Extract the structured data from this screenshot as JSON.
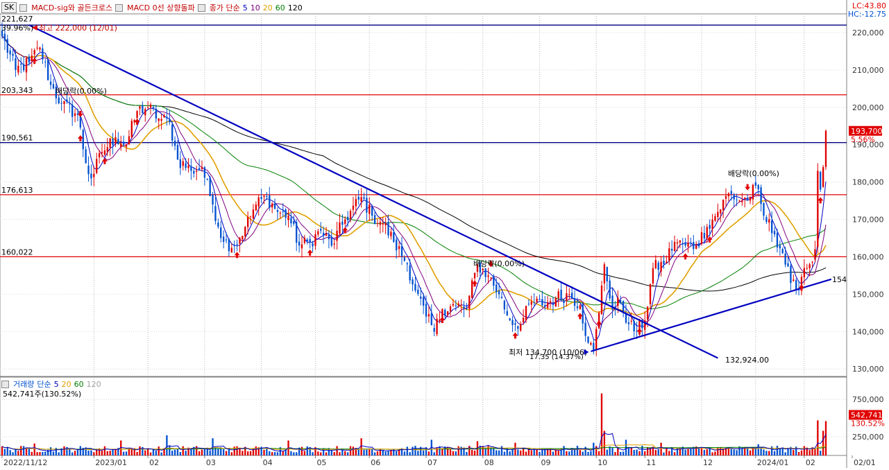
{
  "header": {
    "stock_tag": "SK",
    "indicators": [
      {
        "label": "MACD-sig와 골든크로스",
        "color": "#c00000"
      },
      {
        "label": "MACD 0선 상향돌파",
        "color": "#c00000"
      }
    ],
    "ma_title": "종가 단순",
    "ma_periods": [
      {
        "label": "5",
        "color": "#0000c0"
      },
      {
        "label": "10",
        "color": "#800080"
      },
      {
        "label": "20",
        "color": "#e0a000"
      },
      {
        "label": "60",
        "color": "#008000"
      },
      {
        "label": "120",
        "color": "#000000"
      }
    ],
    "lc": "LC:43.80",
    "hc": "HC:-12.75",
    "top_left_value": "221,627"
  },
  "colors": {
    "up": "#e00000",
    "down": "#0050d0",
    "ma5": "#0000c0",
    "ma10": "#800080",
    "ma20": "#e0a000",
    "ma60": "#008000",
    "ma120": "#000000",
    "trend": "#0000c0",
    "hline": "#e00000",
    "navy": "#000080"
  },
  "chart_data": [
    {
      "type": "candlestick",
      "ylim": [
        128000,
        225000
      ],
      "y_ticks": [
        "220,000",
        "210,000",
        "200,000",
        "190,000",
        "180,000",
        "170,000",
        "160,000",
        "150,000",
        "140,000",
        "130,000"
      ],
      "y_tick_values": [
        220000,
        210000,
        200000,
        190000,
        180000,
        170000,
        160000,
        150000,
        140000,
        130000
      ],
      "x_labels": [
        "2022/11/12",
        "2023/01",
        "02",
        "03",
        "04",
        "05",
        "06",
        "07",
        "08",
        "09",
        "10",
        "11",
        "12",
        "2024/01",
        "02",
        "02/01"
      ],
      "x_label_index": [
        0,
        34,
        54,
        75,
        96,
        116,
        136,
        157,
        178,
        199,
        220,
        238,
        259,
        279,
        297,
        315
      ],
      "num_bars": 300,
      "close_anchors": [
        [
          0,
          219000
        ],
        [
          5,
          210000
        ],
        [
          10,
          212000
        ],
        [
          14,
          216000
        ],
        [
          18,
          206000
        ],
        [
          22,
          201000
        ],
        [
          28,
          198000
        ],
        [
          31,
          185000
        ],
        [
          33,
          181000
        ],
        [
          37,
          188000
        ],
        [
          42,
          192000
        ],
        [
          46,
          190000
        ],
        [
          50,
          199000
        ],
        [
          54,
          200000
        ],
        [
          58,
          197000
        ],
        [
          62,
          196000
        ],
        [
          65,
          186000
        ],
        [
          70,
          183000
        ],
        [
          74,
          184000
        ],
        [
          78,
          174000
        ],
        [
          82,
          164000
        ],
        [
          86,
          163000
        ],
        [
          90,
          168000
        ],
        [
          94,
          174000
        ],
        [
          98,
          176000
        ],
        [
          102,
          172000
        ],
        [
          106,
          171000
        ],
        [
          110,
          163000
        ],
        [
          114,
          164000
        ],
        [
          118,
          167000
        ],
        [
          122,
          163000
        ],
        [
          127,
          170000
        ],
        [
          133,
          176000
        ],
        [
          137,
          171000
        ],
        [
          141,
          169000
        ],
        [
          145,
          164000
        ],
        [
          150,
          158000
        ],
        [
          153,
          151000
        ],
        [
          157,
          144000
        ],
        [
          160,
          140000
        ],
        [
          163,
          146000
        ],
        [
          168,
          147000
        ],
        [
          172,
          146000
        ],
        [
          176,
          158000
        ],
        [
          180,
          155000
        ],
        [
          184,
          150000
        ],
        [
          188,
          143000
        ],
        [
          192,
          142000
        ],
        [
          196,
          148000
        ],
        [
          200,
          147000
        ],
        [
          205,
          149000
        ],
        [
          210,
          150000
        ],
        [
          214,
          147000
        ],
        [
          217,
          137000
        ],
        [
          219,
          134700
        ],
        [
          221,
          145000
        ],
        [
          223,
          158000
        ],
        [
          226,
          146000
        ],
        [
          229,
          148000
        ],
        [
          232,
          142000
        ],
        [
          235,
          140000
        ],
        [
          238,
          143000
        ],
        [
          241,
          157000
        ],
        [
          245,
          158000
        ],
        [
          249,
          164000
        ],
        [
          253,
          163000
        ],
        [
          257,
          163000
        ],
        [
          261,
          168000
        ],
        [
          265,
          172000
        ],
        [
          269,
          177000
        ],
        [
          273,
          175000
        ],
        [
          277,
          176000
        ],
        [
          279,
          179000
        ],
        [
          282,
          171000
        ],
        [
          286,
          166000
        ],
        [
          289,
          161000
        ],
        [
          292,
          153000
        ],
        [
          294,
          151000
        ],
        [
          297,
          157000
        ],
        [
          299,
          158000
        ],
        [
          301,
          162000
        ],
        [
          302,
          183000
        ],
        [
          303,
          178000
        ],
        [
          304,
          184000
        ],
        [
          305,
          193700
        ]
      ],
      "h_lines": [
        {
          "value": 222000,
          "color": "navy"
        },
        {
          "value": 203343,
          "color": "red",
          "label": "203,343"
        },
        {
          "value": 190561,
          "color": "navy",
          "label": "190,561"
        },
        {
          "value": 176613,
          "color": "red",
          "label": "176,613"
        },
        {
          "value": 160022,
          "color": "red",
          "label": "160,022"
        }
      ],
      "trendlines": [
        {
          "from": [
            10,
            222000
          ],
          "to": [
            265,
            132924
          ]
        },
        {
          "from": [
            218,
            134700
          ],
          "to": [
            307,
            154000
          ]
        }
      ],
      "annotations": {
        "high": "최고 222,000 (12/01)",
        "pct_high": "39.96%)",
        "dividend1": "배당락(0.00%)",
        "dividend2": "배당락(0.00%)",
        "dividend3": "배당락(0.00%)",
        "low": "최저 134,700 (10/06)",
        "low_sub": "17.35 (14.37%)",
        "trend_end": "132,924.00",
        "trend_end_right": "154"
      },
      "current_price": {
        "label": "193,700",
        "pct": "5.56%"
      },
      "signal_up_bars": [
        12,
        29,
        38,
        50,
        87,
        114,
        127,
        163,
        175,
        190,
        214,
        221,
        236,
        253,
        262,
        296,
        303
      ],
      "signal_down_bars": [
        29,
        181,
        276
      ]
    },
    {
      "type": "bar",
      "legend_title": "거래량",
      "ma_title": "단순",
      "ma_periods": [
        {
          "label": "5",
          "color": "#0000c0"
        },
        {
          "label": "20",
          "color": "#e0a000"
        },
        {
          "label": "60",
          "color": "#008000"
        },
        {
          "label": "120",
          "color": "#a0a0a0"
        }
      ],
      "current_label": "542,741주(130.52%)",
      "y_ticks": [
        "750,000",
        "250,000"
      ],
      "y_tick_values": [
        750000,
        250000
      ],
      "ylim": [
        0,
        900000
      ],
      "current_value": {
        "label": "542,741",
        "pct": "130.52%"
      },
      "spike_bars": [
        [
          12,
          160000
        ],
        [
          44,
          200000
        ],
        [
          61,
          270000
        ],
        [
          78,
          230000
        ],
        [
          106,
          200000
        ],
        [
          133,
          230000
        ],
        [
          159,
          210000
        ],
        [
          176,
          190000
        ],
        [
          190,
          170000
        ],
        [
          219,
          170000
        ],
        [
          222,
          830000
        ],
        [
          223,
          330000
        ],
        [
          231,
          210000
        ],
        [
          244,
          170000
        ],
        [
          280,
          150000
        ],
        [
          302,
          470000
        ],
        [
          304,
          330000
        ],
        [
          305,
          460000
        ]
      ]
    }
  ]
}
